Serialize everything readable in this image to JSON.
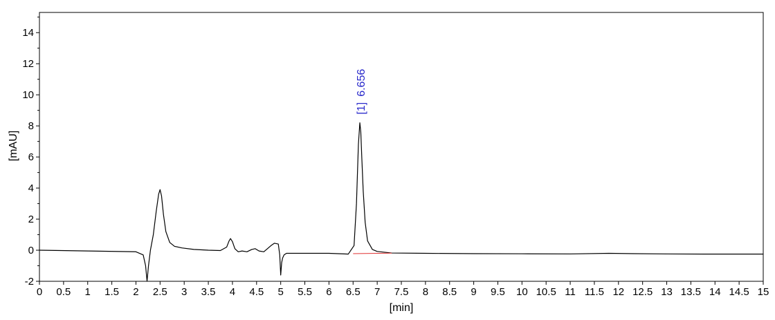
{
  "chart_data": {
    "type": "line",
    "xlabel": "[min]",
    "ylabel": "[mAU]",
    "xlim": [
      0,
      15
    ],
    "ylim": [
      -2,
      15
    ],
    "x_ticks": [
      "0",
      "0.5",
      "1",
      "1.5",
      "2",
      "2.5",
      "3",
      "3.5",
      "4",
      "4.5",
      "5",
      "5.5",
      "6",
      "6.5",
      "7",
      "7.5",
      "8",
      "8.5",
      "9",
      "9.5",
      "10",
      "10.5",
      "11",
      "11.5",
      "12",
      "12.5",
      "13",
      "13.5",
      "14",
      "14.5",
      "15"
    ],
    "y_ticks": [
      "-2",
      "0",
      "2",
      "4",
      "6",
      "8",
      "10",
      "12",
      "14"
    ],
    "grid": false,
    "series": [
      {
        "color": "#000000",
        "x": [
          0,
          1.0,
          2.0,
          2.15,
          2.2,
          2.23,
          2.26,
          2.3,
          2.36,
          2.42,
          2.47,
          2.5,
          2.53,
          2.57,
          2.62,
          2.7,
          2.8,
          2.95,
          3.2,
          3.5,
          3.75,
          3.88,
          3.93,
          3.96,
          4.0,
          4.05,
          4.12,
          4.2,
          4.3,
          4.4,
          4.47,
          4.55,
          4.65,
          4.8,
          4.87,
          4.95,
          4.98,
          5.0,
          5.02,
          5.04,
          5.07,
          5.12,
          5.2,
          5.4,
          6.0,
          6.4,
          6.52,
          6.57,
          6.61,
          6.64,
          6.66,
          6.68,
          6.71,
          6.75,
          6.8,
          6.9,
          7.0,
          7.3,
          8.0,
          9.0,
          10.0,
          11.0,
          11.8,
          12.3,
          13.0,
          14.0,
          15.0
        ],
        "y": [
          0.0,
          -0.05,
          -0.1,
          -0.3,
          -1.0,
          -2.0,
          -1.0,
          0.0,
          1.0,
          2.5,
          3.6,
          3.9,
          3.5,
          2.3,
          1.2,
          0.5,
          0.25,
          0.15,
          0.05,
          0.0,
          -0.02,
          0.2,
          0.6,
          0.75,
          0.55,
          0.1,
          -0.1,
          -0.05,
          -0.1,
          0.05,
          0.1,
          -0.05,
          -0.1,
          0.3,
          0.45,
          0.4,
          -0.3,
          -1.6,
          -0.8,
          -0.5,
          -0.3,
          -0.2,
          -0.2,
          -0.2,
          -0.2,
          -0.25,
          0.3,
          3.0,
          6.8,
          8.2,
          7.6,
          6.0,
          3.8,
          1.8,
          0.6,
          0.05,
          -0.08,
          -0.18,
          -0.2,
          -0.22,
          -0.23,
          -0.24,
          -0.2,
          -0.22,
          -0.24,
          -0.25,
          -0.25
        ]
      },
      {
        "color": "#e03030",
        "x": [
          6.5,
          7.3
        ],
        "y": [
          -0.22,
          -0.19
        ]
      }
    ],
    "annotations": [
      {
        "x": 6.656,
        "y": 8.2,
        "prefix": "[1]",
        "text": "6.656",
        "color": "#2a2acb"
      }
    ]
  }
}
